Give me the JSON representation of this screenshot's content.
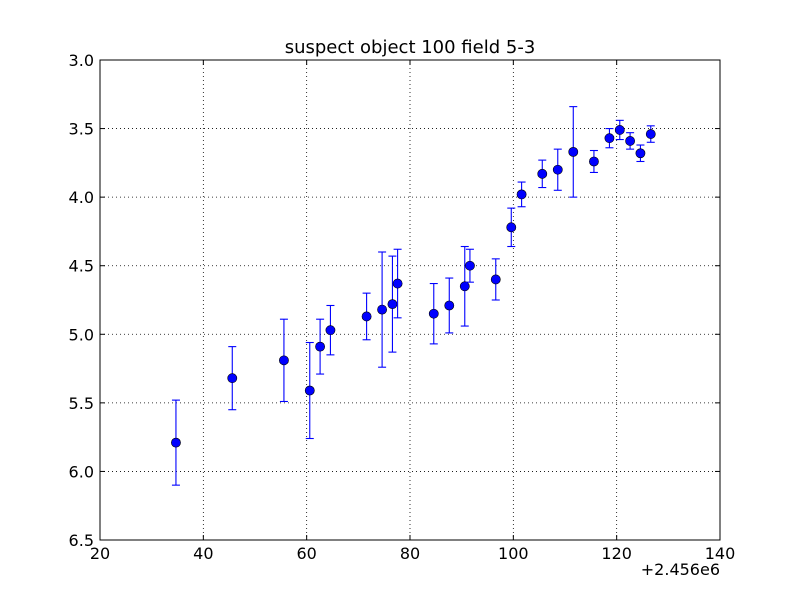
{
  "chart_data": {
    "type": "scatter",
    "title": "suspect object 100 field 5-3",
    "xlabel": "",
    "ylabel": "",
    "x_offset_label": "+2.456e6",
    "xlim": [
      20,
      140
    ],
    "ylim": [
      6.5,
      3.0
    ],
    "y_inverted": true,
    "grid": true,
    "x_ticks": [
      "20",
      "40",
      "60",
      "80",
      "100",
      "120",
      "140"
    ],
    "x_tick_values": [
      20,
      40,
      60,
      80,
      100,
      120,
      140
    ],
    "y_ticks": [
      "3.0",
      "3.5",
      "4.0",
      "4.5",
      "5.0",
      "5.5",
      "6.0",
      "6.5"
    ],
    "y_tick_values": [
      3.0,
      3.5,
      4.0,
      4.5,
      5.0,
      5.5,
      6.0,
      6.5
    ],
    "marker_color": "#0000ff",
    "points": [
      {
        "x": 34.7,
        "y": 5.79,
        "err": 0.31
      },
      {
        "x": 45.6,
        "y": 5.32,
        "err": 0.23
      },
      {
        "x": 55.6,
        "y": 5.19,
        "err": 0.3
      },
      {
        "x": 60.6,
        "y": 5.41,
        "err": 0.35
      },
      {
        "x": 62.6,
        "y": 5.09,
        "err": 0.2
      },
      {
        "x": 64.6,
        "y": 4.97,
        "err": 0.18
      },
      {
        "x": 71.6,
        "y": 4.87,
        "err": 0.17
      },
      {
        "x": 74.6,
        "y": 4.82,
        "err": 0.42
      },
      {
        "x": 76.6,
        "y": 4.78,
        "err": 0.35
      },
      {
        "x": 77.6,
        "y": 4.63,
        "err": 0.25
      },
      {
        "x": 84.6,
        "y": 4.85,
        "err": 0.22
      },
      {
        "x": 87.6,
        "y": 4.79,
        "err": 0.2
      },
      {
        "x": 90.6,
        "y": 4.65,
        "err": 0.29
      },
      {
        "x": 91.6,
        "y": 4.5,
        "err": 0.12
      },
      {
        "x": 96.6,
        "y": 4.6,
        "err": 0.15
      },
      {
        "x": 99.6,
        "y": 4.22,
        "err": 0.14
      },
      {
        "x": 101.6,
        "y": 3.98,
        "err": 0.09
      },
      {
        "x": 105.6,
        "y": 3.83,
        "err": 0.1
      },
      {
        "x": 108.6,
        "y": 3.8,
        "err": 0.15
      },
      {
        "x": 111.6,
        "y": 3.67,
        "err": 0.33
      },
      {
        "x": 115.6,
        "y": 3.74,
        "err": 0.08
      },
      {
        "x": 118.6,
        "y": 3.57,
        "err": 0.07
      },
      {
        "x": 120.6,
        "y": 3.51,
        "err": 0.07
      },
      {
        "x": 122.6,
        "y": 3.59,
        "err": 0.06
      },
      {
        "x": 124.6,
        "y": 3.68,
        "err": 0.06
      },
      {
        "x": 126.6,
        "y": 3.54,
        "err": 0.06
      }
    ]
  }
}
